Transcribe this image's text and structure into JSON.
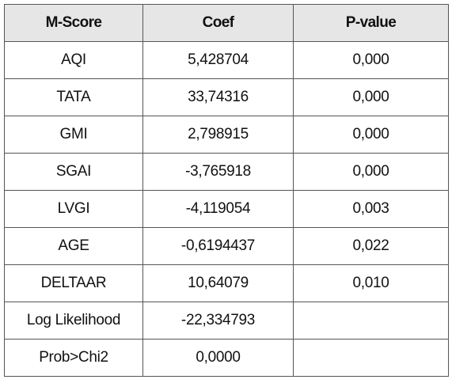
{
  "table": {
    "headers": [
      "M-Score",
      "Coef",
      "P-value"
    ],
    "rows": [
      [
        "AQI",
        "5,428704",
        "0,000"
      ],
      [
        "TATA",
        "33,74316",
        "0,000"
      ],
      [
        "GMI",
        "2,798915",
        "0,000"
      ],
      [
        "SGAI",
        "-3,765918",
        "0,000"
      ],
      [
        "LVGI",
        "-4,119054",
        "0,003"
      ],
      [
        "AGE",
        "-0,6194437",
        "0,022"
      ],
      [
        "DELTAAR",
        "10,64079",
        "0,010"
      ],
      [
        "Log Likelihood",
        "-22,334793",
        ""
      ],
      [
        "Prob>Chi2",
        "0,0000",
        ""
      ]
    ]
  }
}
